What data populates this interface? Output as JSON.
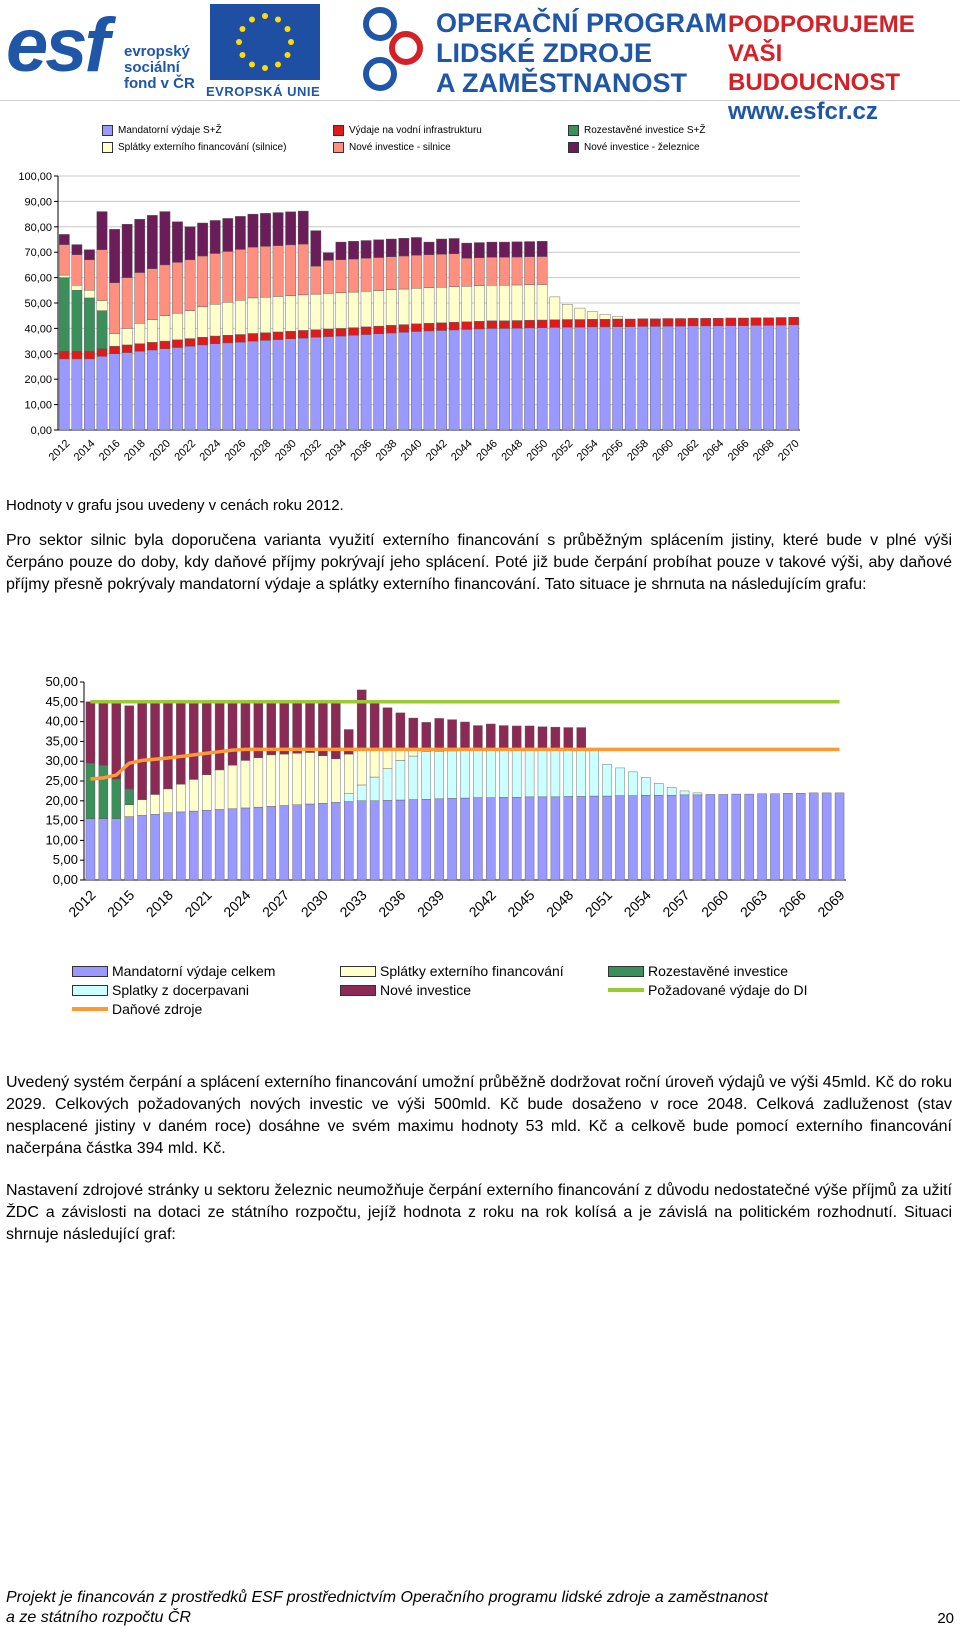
{
  "header": {
    "esf_logo": "esf",
    "esf_text": [
      "evropský",
      "sociální",
      "fond v ČR"
    ],
    "eu_caption": "EVROPSKÁ UNIE",
    "op_lines": [
      "OPERAČNÍ PROGRAM",
      "LIDSKÉ ZDROJE",
      "A ZAMĚSTNANOST"
    ],
    "support_lines": [
      "PODPORUJEME",
      "VAŠI BUDOUCNOST"
    ],
    "url": "www.esfcr.cz"
  },
  "chart1_legend": [
    {
      "label": "Mandatorní výdaje S+Ž",
      "color": "#9999ff"
    },
    {
      "label": "Výdaje na vodní infrastrukturu",
      "color": "#dc1c1c"
    },
    {
      "label": "Rozestavěné investice S+Ž",
      "color": "#3a8f5a"
    },
    {
      "label": "Splátky externího financování (silnice)",
      "color": "#ffffcc"
    },
    {
      "label": "Nové investice - silnice",
      "color": "#ff9080"
    },
    {
      "label": "Nové investice - železnice",
      "color": "#6b1d5a"
    }
  ],
  "chart_data": [
    {
      "type": "bar",
      "stacked": true,
      "years_start": 2012,
      "years_end": 2070,
      "x_tick_labels": [
        "2012",
        "2014",
        "2016",
        "2018",
        "2020",
        "2022",
        "2024",
        "2026",
        "2028",
        "2030",
        "2032",
        "2034",
        "2036",
        "2038",
        "2040",
        "2042",
        "2044",
        "2046",
        "2048",
        "2050",
        "2052",
        "2054",
        "2056",
        "2058",
        "2060",
        "2062",
        "2064",
        "2066",
        "2068",
        "2070"
      ],
      "ylim": [
        0,
        100
      ],
      "y_tick_labels": [
        "0,00",
        "10,00",
        "20,00",
        "30,00",
        "40,00",
        "50,00",
        "60,00",
        "70,00",
        "80,00",
        "90,00",
        "100,00"
      ],
      "grid": true,
      "legend_position": "top",
      "series": [
        {
          "name": "Mandatorní výdaje S+Ž",
          "color": "#9999ff",
          "values": [
            28,
            28,
            28,
            29,
            30,
            30.5,
            31,
            31.5,
            32,
            32.5,
            33,
            33.5,
            34,
            34.3,
            34.6,
            35,
            35.3,
            35.6,
            35.9,
            36.2,
            36.5,
            36.8,
            37,
            37.3,
            37.6,
            37.9,
            38.2,
            38.5,
            38.8,
            39,
            39.2,
            39.4,
            39.6,
            39.8,
            40,
            40,
            40.1,
            40.2,
            40.3,
            40.4,
            40.5,
            40.5,
            40.6,
            40.6,
            40.7,
            40.7,
            40.8,
            40.8,
            40.9,
            40.9,
            41,
            41,
            41,
            41.1,
            41.1,
            41.2,
            41.2,
            41.3,
            41.4
          ]
        },
        {
          "name": "Výdaje na vodní infrastrukturu",
          "color": "#dc1c1c",
          "values": [
            3,
            3,
            3,
            3,
            3,
            3,
            3,
            3,
            3,
            3,
            3,
            3,
            3,
            3,
            3,
            3,
            3,
            3,
            3,
            3,
            3,
            3,
            3,
            3,
            3,
            3,
            3,
            3,
            3,
            3,
            3,
            3,
            3,
            3,
            3,
            3,
            3,
            3,
            3,
            3,
            3,
            3,
            3,
            3,
            3,
            3,
            3,
            3,
            3,
            3,
            3,
            3,
            3,
            3,
            3,
            3,
            3,
            3,
            3
          ]
        },
        {
          "name": "Rozestavěné investice S+Ž",
          "color": "#3a8f5a",
          "values": [
            29,
            24,
            21,
            15,
            0,
            0,
            0,
            0,
            0,
            0,
            0,
            0,
            0,
            0,
            0,
            0,
            0,
            0,
            0,
            0,
            0,
            0,
            0,
            0,
            0,
            0,
            0,
            0,
            0,
            0,
            0,
            0,
            0,
            0,
            0,
            0,
            0,
            0,
            0,
            0,
            0,
            0,
            0,
            0,
            0,
            0,
            0,
            0,
            0,
            0,
            0,
            0,
            0,
            0,
            0,
            0,
            0,
            0,
            0
          ]
        },
        {
          "name": "Splátky externího financování (silnice)",
          "color": "#ffffcc",
          "values": [
            1,
            2,
            3,
            4,
            5,
            6.5,
            8,
            9,
            10,
            10.5,
            11,
            12,
            12.5,
            13,
            13.5,
            14,
            14,
            14,
            14,
            14,
            14,
            14,
            14,
            14,
            14,
            14,
            14,
            14,
            14,
            14,
            14,
            14,
            14,
            14,
            14,
            14,
            14,
            14,
            14,
            9,
            6,
            4.5,
            3,
            2,
            1,
            0,
            0,
            0,
            0,
            0,
            0,
            0,
            0,
            0,
            0,
            0,
            0,
            0,
            0
          ]
        },
        {
          "name": "Nové investice - silnice",
          "color": "#ff9080",
          "values": [
            12,
            12,
            12,
            20,
            20,
            20,
            20,
            20,
            20,
            20,
            20,
            20,
            20,
            20,
            20,
            20,
            20,
            20,
            20,
            20,
            11,
            13,
            13,
            13,
            13,
            13,
            13,
            13,
            13,
            13,
            13,
            13,
            11,
            11,
            11,
            11,
            11,
            11,
            11,
            0,
            0,
            0,
            0,
            0,
            0,
            0,
            0,
            0,
            0,
            0,
            0,
            0,
            0,
            0,
            0,
            0,
            0,
            0,
            0
          ]
        },
        {
          "name": "Nové investice - železnice",
          "color": "#6b1d5a",
          "values": [
            4,
            4,
            4,
            15,
            21,
            21,
            21,
            21,
            21,
            16,
            13,
            13,
            13,
            13,
            13,
            13,
            13,
            13,
            13,
            13,
            14,
            3,
            7,
            7,
            7,
            7,
            7,
            7,
            7,
            5,
            6,
            6,
            6,
            6,
            6,
            6,
            6,
            6,
            6,
            0,
            0,
            0,
            0,
            0,
            0,
            0,
            0,
            0,
            0,
            0,
            0,
            0,
            0,
            0,
            0,
            0,
            0,
            0,
            0
          ]
        }
      ]
    },
    {
      "type": "bar",
      "stacked": true,
      "years_start": 2012,
      "years_end": 2070,
      "x_tick_labels": [
        "2012",
        "2015",
        "2018",
        "2021",
        "2024",
        "2027",
        "2030",
        "2033",
        "2036",
        "2039",
        "2042",
        "2045",
        "2048",
        "2051",
        "2054",
        "2057",
        "2060",
        "2063",
        "2066",
        "2069"
      ],
      "ylim": [
        0,
        50
      ],
      "y_tick_labels": [
        "0,00",
        "5,00",
        "10,00",
        "15,00",
        "20,00",
        "25,00",
        "30,00",
        "35,00",
        "40,00",
        "45,00",
        "50,00"
      ],
      "grid": false,
      "legend_position": "bottom",
      "series": [
        {
          "name": "Mandatorní výdaje celkem",
          "color": "#9999ff",
          "values": [
            15.5,
            15.5,
            15.5,
            16,
            16.3,
            16.6,
            17,
            17.2,
            17.4,
            17.6,
            17.8,
            18,
            18.2,
            18.4,
            18.6,
            18.8,
            19,
            19.2,
            19.4,
            19.6,
            19.8,
            20,
            20,
            20.1,
            20.2,
            20.3,
            20.4,
            20.5,
            20.6,
            20.7,
            20.8,
            20.8,
            20.9,
            20.9,
            21,
            21,
            21,
            21.1,
            21.1,
            21.2,
            21.2,
            21.3,
            21.3,
            21.4,
            21.4,
            21.4,
            21.5,
            21.5,
            21.6,
            21.6,
            21.7,
            21.7,
            21.8,
            21.8,
            21.9,
            21.9,
            22,
            22,
            22
          ]
        },
        {
          "name": "Splátky z docerpavani",
          "color": "#ccffff",
          "values": [
            0,
            0,
            0,
            0,
            0,
            0,
            0,
            0,
            0,
            0,
            0,
            0,
            0,
            0,
            0,
            0,
            0,
            0,
            0,
            0,
            2,
            4,
            6,
            8,
            10,
            11,
            12,
            12,
            12,
            12,
            12,
            12,
            12,
            12,
            12,
            12,
            12,
            12,
            12,
            12,
            8,
            7,
            6,
            4.5,
            3,
            2,
            1,
            0.5,
            0,
            0,
            0,
            0,
            0,
            0,
            0,
            0,
            0,
            0,
            0
          ]
        },
        {
          "name": "Splátky externího financování",
          "color": "#ffffcc",
          "values": [
            0,
            0,
            0,
            3,
            4,
            5,
            6,
            7,
            8,
            9,
            10,
            11,
            12,
            12.5,
            13,
            13,
            13,
            13,
            12,
            11,
            10,
            9,
            7,
            5,
            3,
            2,
            1,
            0,
            0,
            0,
            0,
            0,
            0,
            0,
            0,
            0,
            0,
            0,
            0,
            0,
            0,
            0,
            0,
            0,
            0,
            0,
            0,
            0,
            0,
            0,
            0,
            0,
            0,
            0,
            0,
            0,
            0,
            0,
            0
          ]
        },
        {
          "name": "Rozestavěné investice",
          "color": "#3a8f5a",
          "values": [
            14,
            13.5,
            10,
            4,
            0,
            0,
            0,
            0,
            0,
            0,
            0,
            0,
            0,
            0,
            0,
            0,
            0,
            0,
            0,
            0,
            0,
            0,
            0,
            0,
            0,
            0,
            0,
            0,
            0,
            0,
            0,
            0,
            0,
            0,
            0,
            0,
            0,
            0,
            0,
            0,
            0,
            0,
            0,
            0,
            0,
            0,
            0,
            0,
            0,
            0,
            0,
            0,
            0,
            0,
            0,
            0,
            0,
            0,
            0
          ]
        },
        {
          "name": "Nové investice",
          "color": "#8b2a55",
          "values": [
            15.5,
            16,
            19.5,
            21,
            24.7,
            23.4,
            22,
            20.8,
            19.6,
            18.4,
            17.2,
            16,
            14.8,
            14.1,
            13.4,
            13.2,
            13,
            12.8,
            13.6,
            14.4,
            6.2,
            15,
            12,
            10.4,
            9,
            7.6,
            6.4,
            8.3,
            7.9,
            7.2,
            6.2,
            6.6,
            6.1,
            6,
            5.9,
            5.7,
            5.6,
            5.4,
            5.4,
            0,
            0,
            0,
            0,
            0,
            0,
            0,
            0,
            0,
            0,
            0,
            0,
            0,
            0,
            0,
            0,
            0,
            0,
            0,
            0
          ]
        }
      ],
      "lines": [
        {
          "name": "Požadované výdaje do DI",
          "color": "#99cc33",
          "values": [
            45,
            45,
            45,
            45,
            45,
            45,
            45,
            45,
            45,
            45,
            45,
            45,
            45,
            45,
            45,
            45,
            45,
            45,
            45,
            45,
            45,
            45,
            45,
            45,
            45,
            45,
            45,
            45,
            45,
            45,
            45,
            45,
            45,
            45,
            45,
            45,
            45,
            45,
            45,
            45,
            45,
            45,
            45,
            45,
            45,
            45,
            45,
            45,
            45,
            45,
            45,
            45,
            45,
            45,
            45,
            45,
            45,
            45,
            45
          ]
        },
        {
          "name": "Daňové zdroje",
          "color": "#ff9933",
          "values": [
            25.5,
            25.8,
            26.5,
            29.5,
            30.2,
            30.5,
            30.8,
            31.2,
            31.6,
            32,
            32.4,
            32.8,
            33,
            33,
            33,
            33,
            33,
            33,
            33,
            33,
            33,
            33,
            33,
            33,
            33,
            33,
            33,
            33,
            33,
            33,
            33,
            33,
            33,
            33,
            33,
            33,
            33,
            33,
            33,
            33,
            33,
            33,
            33,
            33,
            33,
            33,
            33,
            33,
            33,
            33,
            33,
            33,
            33,
            33,
            33,
            33,
            33,
            33,
            33
          ]
        }
      ]
    }
  ],
  "chart2_legend": [
    {
      "label": "Mandatorní výdaje celkem",
      "color": "#9999ff",
      "kind": "box"
    },
    {
      "label": "Splátky externího financování",
      "color": "#ffffcc",
      "kind": "box"
    },
    {
      "label": "Rozestavěné investice",
      "color": "#3a8f5a",
      "kind": "box"
    },
    {
      "label": "Splatky z docerpavani",
      "color": "#ccffff",
      "kind": "box"
    },
    {
      "label": "Nové investice",
      "color": "#8b2a55",
      "kind": "box"
    },
    {
      "label": "Požadované výdaje do DI",
      "color": "#99cc33",
      "kind": "line"
    },
    {
      "label": "Daňové zdroje",
      "color": "#ff9933",
      "kind": "line"
    }
  ],
  "note": "Hodnoty v grafu jsou uvedeny v cenách roku 2012.",
  "paragraph1": "Pro sektor silnic byla doporučena varianta využití externího financování s průběžným splácením jistiny, které bude v plné výši čerpáno pouze do doby, kdy daňové příjmy pokrývají jeho splácení. Poté již bude čerpání probíhat pouze v takové výši, aby daňové příjmy přesně pokrývaly mandatorní výdaje a splátky externího financování. Tato situace je shrnuta na následujícím grafu:",
  "paragraph2": "Uvedený systém čerpání a splácení externího financování umožní průběžně dodržovat roční úroveň výdajů ve výši 45mld. Kč do roku 2029. Celkových požadovaných nových investic ve výši 500mld. Kč bude dosaženo v roce 2048. Celková zadluženost (stav nesplacené jistiny v daném roce) dosáhne ve svém maximu hodnoty 53 mld. Kč a celkově bude pomocí externího financování načerpána částka 394 mld. Kč.",
  "paragraph3": "Nastavení zdrojové stránky u sektoru železnic neumožňuje čerpání externího financování z důvodu nedostatečné výše příjmů za užití ŽDC a závislosti na dotaci ze státního rozpočtu, jejíž hodnota z roku na rok kolísá a je závislá na politickém rozhodnutí.  Situaci shrnuje následující graf:",
  "footer_lines": [
    "Projekt je financován z prostředků ESF prostřednictvím Operačního programu lidské zdroje a zaměstnanost",
    "a ze státního rozpočtu ČR"
  ],
  "page_number": "20"
}
